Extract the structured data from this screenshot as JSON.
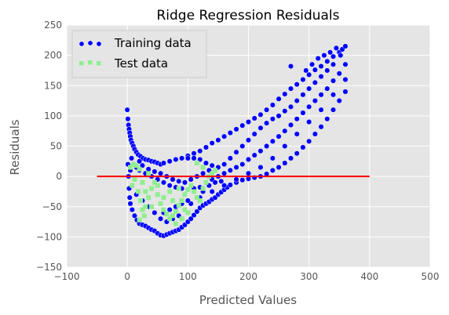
{
  "chart_data": {
    "type": "scatter",
    "title": "Ridge Regression Residuals",
    "xlabel": "Predicted Values",
    "ylabel": "Residuals",
    "xlim": [
      -100,
      500
    ],
    "ylim": [
      -150,
      250
    ],
    "xticks": [
      -100,
      0,
      100,
      200,
      300,
      400,
      500
    ],
    "yticks": [
      -150,
      -100,
      -50,
      0,
      50,
      100,
      150,
      200,
      250
    ],
    "grid": true,
    "legend_position": "top-left",
    "colors": {
      "plot_background": "#e5e5e5",
      "training": "#0000ff",
      "test": "#90ee90",
      "hline": "#ff0000",
      "grid": "#ffffff"
    },
    "hline": {
      "y": 0,
      "xmin": -50,
      "xmax": 400
    },
    "series": [
      {
        "name": "Training data",
        "marker": "circle",
        "points": [
          [
            0,
            110
          ],
          [
            1,
            95
          ],
          [
            2,
            85
          ],
          [
            3,
            78
          ],
          [
            4,
            72
          ],
          [
            5,
            66
          ],
          [
            6,
            60
          ],
          [
            8,
            55
          ],
          [
            10,
            50
          ],
          [
            12,
            45
          ],
          [
            15,
            40
          ],
          [
            18,
            36
          ],
          [
            22,
            33
          ],
          [
            26,
            30
          ],
          [
            30,
            28
          ],
          [
            35,
            27
          ],
          [
            40,
            25
          ],
          [
            45,
            24
          ],
          [
            50,
            22
          ],
          [
            55,
            20
          ],
          [
            1,
            20
          ],
          [
            2,
            0
          ],
          [
            3,
            -20
          ],
          [
            4,
            -35
          ],
          [
            5,
            -45
          ],
          [
            8,
            -55
          ],
          [
            12,
            -65
          ],
          [
            16,
            -72
          ],
          [
            20,
            -78
          ],
          [
            25,
            -80
          ],
          [
            30,
            -82
          ],
          [
            35,
            -85
          ],
          [
            40,
            -88
          ],
          [
            45,
            -90
          ],
          [
            50,
            -94
          ],
          [
            55,
            -97
          ],
          [
            60,
            -98
          ],
          [
            65,
            -96
          ],
          [
            70,
            -94
          ],
          [
            75,
            -92
          ],
          [
            80,
            -90
          ],
          [
            85,
            -88
          ],
          [
            90,
            -84
          ],
          [
            95,
            -80
          ],
          [
            100,
            -75
          ],
          [
            105,
            -70
          ],
          [
            110,
            -64
          ],
          [
            115,
            -58
          ],
          [
            120,
            -52
          ],
          [
            125,
            -48
          ],
          [
            130,
            -45
          ],
          [
            135,
            -42
          ],
          [
            140,
            -38
          ],
          [
            145,
            -35
          ],
          [
            150,
            -30
          ],
          [
            155,
            -26
          ],
          [
            160,
            -22
          ],
          [
            165,
            -18
          ],
          [
            170,
            -14
          ],
          [
            180,
            -10
          ],
          [
            190,
            -6
          ],
          [
            200,
            -4
          ],
          [
            210,
            -2
          ],
          [
            220,
            0
          ],
          [
            230,
            4
          ],
          [
            240,
            10
          ],
          [
            250,
            15
          ],
          [
            260,
            22
          ],
          [
            270,
            30
          ],
          [
            280,
            38
          ],
          [
            290,
            48
          ],
          [
            300,
            58
          ],
          [
            310,
            70
          ],
          [
            320,
            82
          ],
          [
            330,
            95
          ],
          [
            340,
            110
          ],
          [
            350,
            125
          ],
          [
            360,
            140
          ],
          [
            60,
            22
          ],
          [
            70,
            25
          ],
          [
            80,
            28
          ],
          [
            90,
            30
          ],
          [
            100,
            34
          ],
          [
            110,
            38
          ],
          [
            120,
            42
          ],
          [
            130,
            48
          ],
          [
            140,
            55
          ],
          [
            150,
            60
          ],
          [
            160,
            66
          ],
          [
            170,
            72
          ],
          [
            180,
            78
          ],
          [
            190,
            84
          ],
          [
            200,
            90
          ],
          [
            210,
            96
          ],
          [
            220,
            102
          ],
          [
            230,
            110
          ],
          [
            240,
            118
          ],
          [
            250,
            128
          ],
          [
            260,
            136
          ],
          [
            270,
            145
          ],
          [
            280,
            152
          ],
          [
            290,
            160
          ],
          [
            300,
            168
          ],
          [
            310,
            176
          ],
          [
            320,
            182
          ],
          [
            330,
            190
          ],
          [
            340,
            198
          ],
          [
            350,
            205
          ],
          [
            355,
            210
          ],
          [
            360,
            215
          ],
          [
            270,
            182
          ],
          [
            295,
            175
          ],
          [
            305,
            185
          ],
          [
            315,
            195
          ],
          [
            325,
            200
          ],
          [
            335,
            205
          ],
          [
            345,
            212
          ],
          [
            352,
            200
          ],
          [
            20,
            10
          ],
          [
            30,
            5
          ],
          [
            40,
            0
          ],
          [
            50,
            -5
          ],
          [
            60,
            -10
          ],
          [
            70,
            -15
          ],
          [
            80,
            -18
          ],
          [
            90,
            -20
          ],
          [
            100,
            -22
          ],
          [
            110,
            -20
          ],
          [
            120,
            -18
          ],
          [
            130,
            -10
          ],
          [
            140,
            -5
          ],
          [
            150,
            0
          ],
          [
            160,
            5
          ],
          [
            170,
            10
          ],
          [
            180,
            15
          ],
          [
            190,
            20
          ],
          [
            200,
            28
          ],
          [
            210,
            35
          ],
          [
            220,
            42
          ],
          [
            230,
            50
          ],
          [
            240,
            58
          ],
          [
            250,
            66
          ],
          [
            260,
            75
          ],
          [
            270,
            85
          ],
          [
            280,
            95
          ],
          [
            290,
            105
          ],
          [
            300,
            115
          ],
          [
            310,
            125
          ],
          [
            320,
            135
          ],
          [
            330,
            145
          ],
          [
            340,
            158
          ],
          [
            350,
            170
          ],
          [
            360,
            185
          ],
          [
            15,
            -30
          ],
          [
            25,
            -40
          ],
          [
            35,
            -50
          ],
          [
            45,
            -60
          ],
          [
            55,
            -70
          ],
          [
            65,
            -75
          ],
          [
            75,
            -70
          ],
          [
            85,
            -65
          ],
          [
            95,
            -55
          ],
          [
            105,
            -45
          ],
          [
            115,
            -35
          ],
          [
            125,
            -25
          ],
          [
            135,
            -15
          ],
          [
            145,
            -10
          ],
          [
            155,
            -8
          ],
          [
            100,
            30
          ],
          [
            110,
            30
          ],
          [
            120,
            28
          ],
          [
            130,
            22
          ],
          [
            140,
            18
          ],
          [
            150,
            15
          ],
          [
            160,
            20
          ],
          [
            170,
            30
          ],
          [
            180,
            40
          ],
          [
            190,
            50
          ],
          [
            200,
            60
          ],
          [
            210,
            70
          ],
          [
            220,
            80
          ],
          [
            230,
            88
          ],
          [
            240,
            95
          ],
          [
            250,
            100
          ],
          [
            260,
            108
          ],
          [
            270,
            115
          ],
          [
            280,
            125
          ],
          [
            290,
            135
          ],
          [
            300,
            145
          ],
          [
            310,
            155
          ],
          [
            320,
            165
          ],
          [
            330,
            175
          ],
          [
            340,
            185
          ],
          [
            60,
            -60
          ],
          [
            70,
            -55
          ],
          [
            80,
            -50
          ],
          [
            90,
            -45
          ],
          [
            100,
            -40
          ],
          [
            120,
            -35
          ],
          [
            140,
            -25
          ],
          [
            160,
            -15
          ],
          [
            180,
            -5
          ],
          [
            200,
            5
          ],
          [
            220,
            15
          ],
          [
            240,
            30
          ],
          [
            260,
            50
          ],
          [
            280,
            70
          ],
          [
            300,
            90
          ],
          [
            320,
            110
          ],
          [
            340,
            135
          ],
          [
            360,
            160
          ],
          [
            5,
            10
          ],
          [
            7,
            30
          ],
          [
            10,
            20
          ],
          [
            15,
            15
          ],
          [
            20,
            25
          ],
          [
            25,
            18
          ],
          [
            35,
            12
          ],
          [
            45,
            8
          ],
          [
            55,
            5
          ],
          [
            65,
            0
          ],
          [
            75,
            -5
          ],
          [
            85,
            -8
          ],
          [
            95,
            -10
          ],
          [
            105,
            -5
          ],
          [
            115,
            0
          ],
          [
            125,
            5
          ],
          [
            135,
            10
          ]
        ]
      },
      {
        "name": "Test data",
        "marker": "square",
        "points": [
          [
            5,
            15
          ],
          [
            10,
            20
          ],
          [
            15,
            18
          ],
          [
            20,
            12
          ],
          [
            12,
            -5
          ],
          [
            8,
            -15
          ],
          [
            18,
            -25
          ],
          [
            22,
            -40
          ],
          [
            25,
            -55
          ],
          [
            28,
            -65
          ],
          [
            20,
            -72
          ],
          [
            30,
            -50
          ],
          [
            35,
            -35
          ],
          [
            40,
            -20
          ],
          [
            45,
            -10
          ],
          [
            50,
            -30
          ],
          [
            55,
            -45
          ],
          [
            60,
            -55
          ],
          [
            65,
            -62
          ],
          [
            70,
            -70
          ],
          [
            75,
            -65
          ],
          [
            80,
            -58
          ],
          [
            85,
            -48
          ],
          [
            90,
            -40
          ],
          [
            95,
            -30
          ],
          [
            100,
            -22
          ],
          [
            105,
            -15
          ],
          [
            110,
            -25
          ],
          [
            115,
            -35
          ],
          [
            120,
            -40
          ],
          [
            125,
            -20
          ],
          [
            130,
            -10
          ],
          [
            135,
            0
          ],
          [
            140,
            5
          ],
          [
            145,
            10
          ],
          [
            125,
            15
          ],
          [
            115,
            22
          ],
          [
            100,
            -60
          ],
          [
            90,
            -70
          ],
          [
            80,
            -78
          ],
          [
            60,
            -35
          ],
          [
            50,
            -15
          ],
          [
            40,
            -50
          ],
          [
            30,
            -25
          ],
          [
            25,
            -10
          ],
          [
            35,
            5
          ],
          [
            70,
            -25
          ],
          [
            75,
            -40
          ],
          [
            85,
            -20
          ],
          [
            95,
            -55
          ]
        ]
      }
    ]
  }
}
